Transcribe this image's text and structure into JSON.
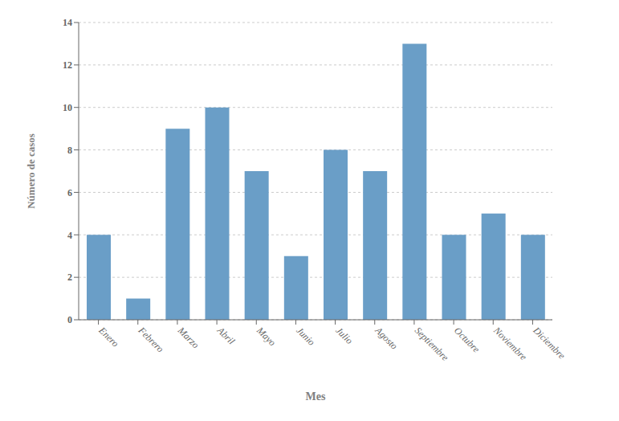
{
  "chart_data": {
    "type": "bar",
    "categories": [
      "Enero",
      "Febrero",
      "Marzo",
      "Abril",
      "Mayo",
      "Junio",
      "Julio",
      "Agosto",
      "Septiembre",
      "Octubre",
      "Noviembre",
      "Diciembre"
    ],
    "values": [
      4,
      1,
      9,
      10,
      7,
      3,
      8,
      7,
      13,
      4,
      5,
      4
    ],
    "color": "#6a9ec7",
    "xlabel": "Mes",
    "ylabel": "Número de casos",
    "ylim": [
      0,
      14
    ],
    "yticks": [
      0,
      2,
      4,
      6,
      8,
      10,
      12,
      14
    ],
    "grid": true
  }
}
